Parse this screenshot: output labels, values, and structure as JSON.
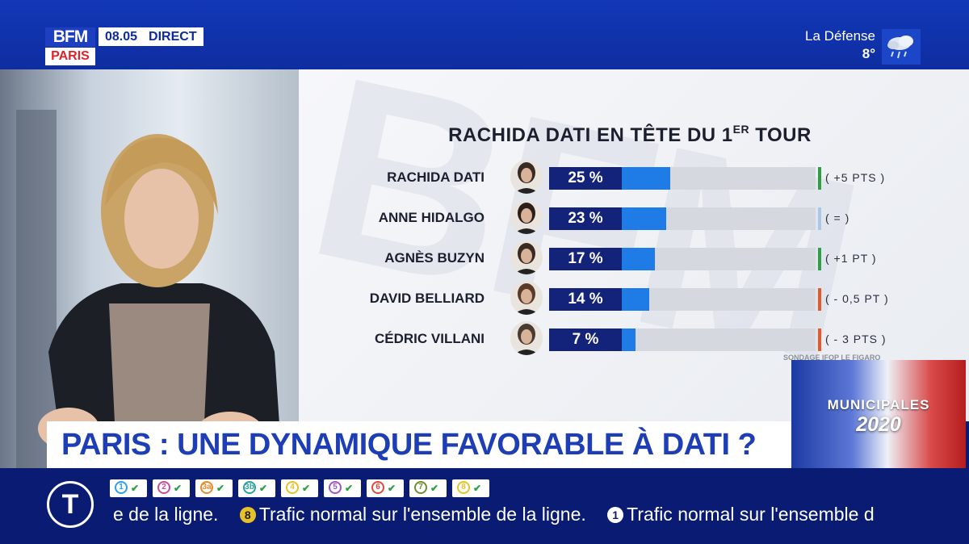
{
  "header": {
    "brand": "BFM",
    "city": "PARIS",
    "time": "08.05",
    "live_label": "DIRECT",
    "weather_location": "La Défense",
    "weather_temp": "8°",
    "weather_icon": "rain-cloud-icon"
  },
  "chart": {
    "title_main": "RACHIDA DATI EN TÊTE DU 1",
    "title_sup": "ER",
    "title_end": " TOUR",
    "source": "SONDAGE IFOP LE FIGARO",
    "bar_color": "#1f7ce6",
    "label_color": "#13237a"
  },
  "chart_data": {
    "type": "bar",
    "title": "RACHIDA DATI EN TÊTE DU 1ER TOUR",
    "categories": [
      "RACHIDA DATI",
      "ANNE HIDALGO",
      "AGNÈS BUZYN",
      "DAVID BELLIARD",
      "CÉDRIC VILLANI"
    ],
    "values": [
      25,
      23,
      17,
      14,
      7
    ],
    "value_labels": [
      "25 %",
      "23 %",
      "17 %",
      "14 %",
      "7 %"
    ],
    "changes": [
      "( +5 PTS )",
      "( = )",
      "( +1 PT )",
      "( - 0,5 PT )",
      "( - 3 PTS )"
    ],
    "change_colors": [
      "#2ea043",
      "#a9c7e6",
      "#2ea043",
      "#e8572a",
      "#e8572a"
    ]
  },
  "badge": {
    "label": "MUNICIPALES",
    "year": "2020"
  },
  "headline": {
    "text": "PARIS : UNE DYNAMIQUE FAVORABLE À DATI ?"
  },
  "ticker": {
    "logo": "T",
    "lines": [
      {
        "num": "1",
        "color": "#2f9ee8"
      },
      {
        "num": "2",
        "color": "#c84b9c"
      },
      {
        "num": "3a",
        "color": "#e88a2a"
      },
      {
        "num": "3b",
        "color": "#2aa39e"
      },
      {
        "num": "4",
        "color": "#e6c229"
      },
      {
        "num": "5",
        "color": "#a254c7"
      },
      {
        "num": "6",
        "color": "#e3463c"
      },
      {
        "num": "7",
        "color": "#6e8f2f"
      },
      {
        "num": "8",
        "color": "#e6c229"
      }
    ],
    "text_a": "e de la ligne.",
    "num_b": "8",
    "text_b": "Trafic normal sur l'ensemble de la ligne.",
    "num_c": "1",
    "text_c": "Trafic normal sur l'ensemble d"
  }
}
